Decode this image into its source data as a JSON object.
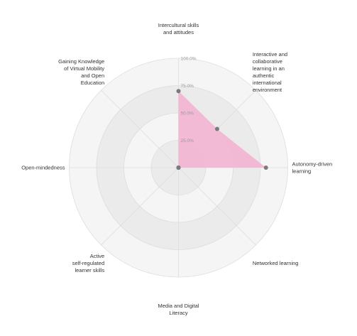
{
  "chart_data": {
    "type": "radar",
    "axes": [
      [
        "Intercultural skills",
        "and attitudes"
      ],
      [
        "Interactive and",
        "collaborative",
        "learning in an",
        "authentic",
        "international",
        "environment"
      ],
      [
        "Autonomy-driven",
        "learning"
      ],
      [
        "Networked learning"
      ],
      [
        "Media and Digital",
        "Literacy"
      ],
      [
        "Active",
        "self-regulated",
        "learner skills"
      ],
      [
        "Open-mindedness"
      ],
      [
        "Gaining Knowledge",
        "of Virtual Mobility",
        "and Open",
        "Education"
      ]
    ],
    "ticks": [
      "25.0%",
      "50.0%",
      "75.0%",
      "100.0%"
    ],
    "range": [
      0,
      100
    ],
    "series": [
      {
        "values": [
          70,
          50,
          80,
          0,
          0,
          0,
          0,
          0
        ]
      }
    ],
    "grid": true,
    "legend": "none"
  },
  "colors": {
    "fill": "#f2b6d4",
    "point": "#7a7a7a",
    "ring_odd": "#f5f5f5",
    "ring_even": "#ebebeb",
    "grid_line": "#dddddd"
  }
}
